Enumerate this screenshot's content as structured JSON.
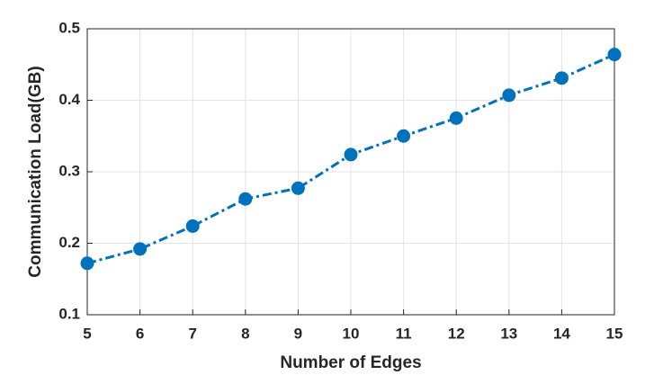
{
  "chart_data": {
    "type": "line",
    "x_label": "Number of Edges",
    "y_label": "Communication Load(GB)",
    "x": [
      5,
      6,
      7,
      8,
      9,
      10,
      11,
      12,
      13,
      14,
      15
    ],
    "series": [
      {
        "color": "#0072bd",
        "values": [
          0.172,
          0.192,
          0.224,
          0.262,
          0.277,
          0.324,
          0.35,
          0.375,
          0.407,
          0.431,
          0.464
        ]
      }
    ],
    "xlim": [
      5,
      15
    ],
    "xticks": [
      5,
      6,
      7,
      8,
      9,
      10,
      11,
      12,
      13,
      14,
      15
    ],
    "ylim": [
      0.1,
      0.5
    ],
    "yticks": [
      0.1,
      0.2,
      0.3,
      0.4,
      0.5
    ],
    "grid": true
  }
}
